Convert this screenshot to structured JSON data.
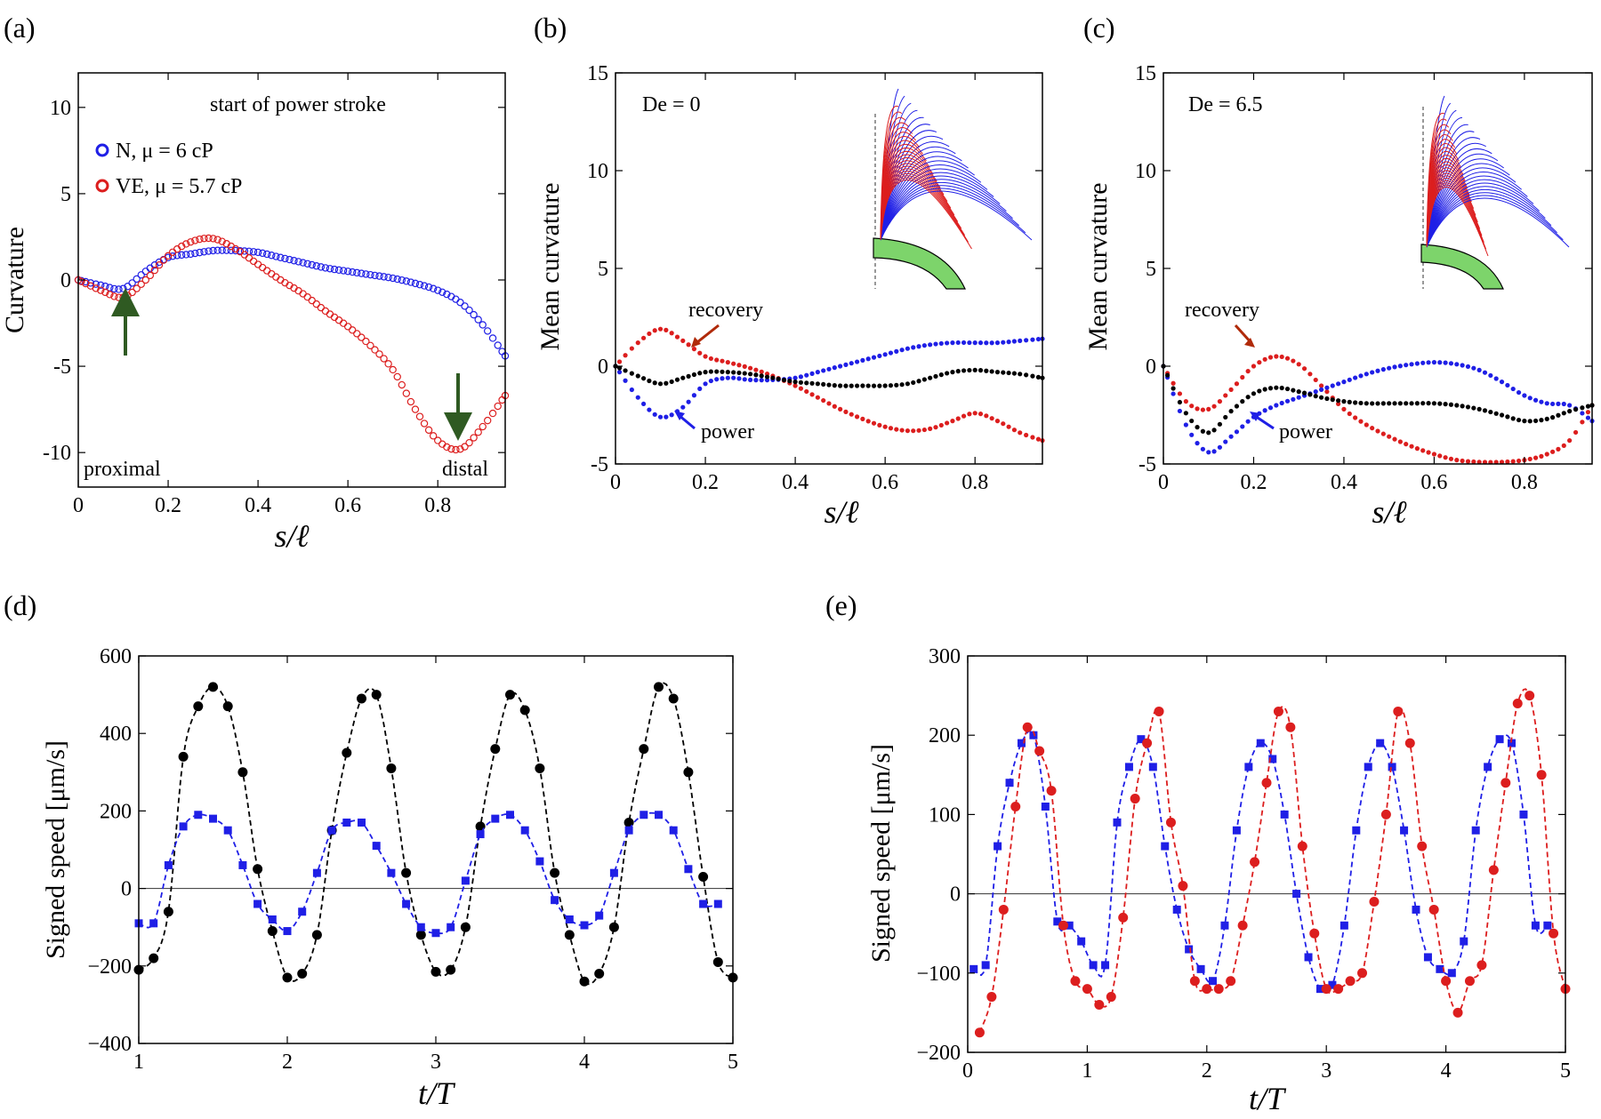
{
  "colors": {
    "blue": "#1f1fe6",
    "red": "#dc1e1e",
    "black": "#000000",
    "dark_red": "#b02a0a",
    "green_arrow": "#2f5a22",
    "green_fill": "#7dd46b"
  },
  "figure": {
    "panels": [
      {
        "letter": "(a)",
        "title": "start of power stroke",
        "ylabel": "Curvature",
        "xlabel": "s/ℓ",
        "xlim": [
          0,
          0.95
        ],
        "ylim": [
          -12,
          12
        ],
        "xticks": [
          "0",
          "0.2",
          "0.4",
          "0.6",
          "0.8"
        ],
        "yticks": [
          "-10",
          "-5",
          "0",
          "5",
          "10"
        ],
        "legend": [
          {
            "label": "N,  μ = 6 cP",
            "color": "#1f1fe6"
          },
          {
            "label": "VE,  μ = 5.7 cP",
            "color": "#dc1e1e"
          }
        ],
        "corner_labels": {
          "left": "proximal",
          "right": "distal"
        }
      },
      {
        "letter": "(b)",
        "condition": "De = 0",
        "ylabel": "Mean  curvature",
        "xlabel": "s/ℓ",
        "xlim": [
          0,
          0.95
        ],
        "ylim": [
          -5,
          15
        ],
        "xticks": [
          "0",
          "0.2",
          "0.4",
          "0.6",
          "0.8"
        ],
        "yticks": [
          "-5",
          "0",
          "5",
          "10",
          "15"
        ],
        "annotations": {
          "recovery": "recovery",
          "power": "power"
        }
      },
      {
        "letter": "(c)",
        "condition": "De = 6.5",
        "ylabel": "Mean  curvature",
        "xlabel": "s/ℓ",
        "xlim": [
          0,
          0.95
        ],
        "ylim": [
          -5,
          15
        ],
        "xticks": [
          "0",
          "0.2",
          "0.4",
          "0.6",
          "0.8"
        ],
        "yticks": [
          "-5",
          "0",
          "5",
          "10",
          "15"
        ],
        "annotations": {
          "recovery": "recovery",
          "power": "power"
        }
      },
      {
        "letter": "(d)",
        "ylabel": "Signed speed [μm/s]",
        "xlabel": "t/T",
        "xlim": [
          1,
          5
        ],
        "ylim": [
          -400,
          600
        ],
        "xticks": [
          "1",
          "2",
          "3",
          "4",
          "5"
        ],
        "yticks": [
          "−400",
          "−200",
          "0",
          "200",
          "400",
          "600"
        ]
      },
      {
        "letter": "(e)",
        "ylabel": "Signed speed [μm/s]",
        "xlabel": "t/T",
        "xlim": [
          0,
          5
        ],
        "ylim": [
          -200,
          300
        ],
        "xticks": [
          "0",
          "1",
          "2",
          "3",
          "4",
          "5"
        ],
        "yticks": [
          "−200",
          "−100",
          "0",
          "100",
          "200",
          "300"
        ]
      }
    ]
  },
  "chart_data": [
    {
      "panel": "a",
      "type": "scatter",
      "title": "start of power stroke",
      "xlabel": "s/ℓ",
      "ylabel": "Curvature",
      "xlim": [
        0,
        0.95
      ],
      "ylim": [
        -12,
        12
      ],
      "series": [
        {
          "name": "N, μ = 6 cP",
          "color": "#1f1fe6",
          "x": [
            0,
            0.05,
            0.1,
            0.15,
            0.2,
            0.25,
            0.3,
            0.35,
            0.4,
            0.45,
            0.5,
            0.55,
            0.6,
            0.65,
            0.7,
            0.75,
            0.8,
            0.85,
            0.9,
            0.95
          ],
          "y": [
            0,
            -0.3,
            -0.5,
            0.5,
            1.3,
            1.5,
            1.7,
            1.7,
            1.6,
            1.3,
            1.0,
            0.7,
            0.5,
            0.3,
            0.1,
            -0.2,
            -0.6,
            -1.3,
            -2.6,
            -4.4
          ]
        },
        {
          "name": "VE, μ = 5.7 cP",
          "color": "#dc1e1e",
          "x": [
            0,
            0.05,
            0.1,
            0.15,
            0.2,
            0.25,
            0.3,
            0.35,
            0.4,
            0.45,
            0.5,
            0.55,
            0.6,
            0.65,
            0.7,
            0.75,
            0.8,
            0.85,
            0.9,
            0.95
          ],
          "y": [
            0,
            -0.6,
            -1.0,
            0,
            1.4,
            2.2,
            2.4,
            1.8,
            0.9,
            0.0,
            -0.8,
            -1.8,
            -2.7,
            -3.8,
            -5.2,
            -7.5,
            -9.3,
            -9.8,
            -8.5,
            -6.7
          ]
        }
      ],
      "annotations": [
        "proximal",
        "distal"
      ]
    },
    {
      "panel": "b",
      "type": "scatter",
      "title": "De = 0",
      "xlabel": "s/ℓ",
      "ylabel": "Mean  curvature",
      "xlim": [
        0,
        0.95
      ],
      "ylim": [
        -5,
        15
      ],
      "series": [
        {
          "name": "recovery",
          "color": "#dc1e1e",
          "x": [
            0,
            0.05,
            0.1,
            0.15,
            0.2,
            0.25,
            0.3,
            0.35,
            0.4,
            0.45,
            0.5,
            0.55,
            0.6,
            0.65,
            0.7,
            0.75,
            0.8,
            0.85,
            0.9,
            0.95
          ],
          "y": [
            0,
            1.2,
            1.9,
            1.3,
            0.5,
            0.2,
            -0.1,
            -0.5,
            -1.0,
            -1.6,
            -2.2,
            -2.7,
            -3.1,
            -3.3,
            -3.2,
            -2.8,
            -2.4,
            -2.8,
            -3.4,
            -3.8
          ]
        },
        {
          "name": "power",
          "color": "#1f1fe6",
          "x": [
            0,
            0.05,
            0.1,
            0.15,
            0.2,
            0.25,
            0.3,
            0.35,
            0.4,
            0.45,
            0.5,
            0.55,
            0.6,
            0.65,
            0.7,
            0.75,
            0.8,
            0.85,
            0.9,
            0.95
          ],
          "y": [
            0,
            -1.6,
            -2.6,
            -2.1,
            -0.9,
            -0.6,
            -0.7,
            -0.7,
            -0.6,
            -0.3,
            0.0,
            0.3,
            0.6,
            0.9,
            1.1,
            1.2,
            1.2,
            1.2,
            1.3,
            1.4
          ]
        },
        {
          "name": "mean",
          "color": "#000000",
          "x": [
            0,
            0.05,
            0.1,
            0.15,
            0.2,
            0.25,
            0.3,
            0.35,
            0.4,
            0.45,
            0.5,
            0.55,
            0.6,
            0.65,
            0.7,
            0.75,
            0.8,
            0.85,
            0.9,
            0.95
          ],
          "y": [
            0,
            -0.5,
            -0.9,
            -0.6,
            -0.3,
            -0.3,
            -0.4,
            -0.6,
            -0.8,
            -0.9,
            -1.0,
            -1.0,
            -1.0,
            -0.9,
            -0.6,
            -0.3,
            -0.2,
            -0.3,
            -0.4,
            -0.6
          ]
        }
      ],
      "annotations": [
        "recovery",
        "power"
      ]
    },
    {
      "panel": "c",
      "type": "scatter",
      "title": "De = 6.5",
      "xlabel": "s/ℓ",
      "ylabel": "Mean  curvature",
      "xlim": [
        0,
        0.95
      ],
      "ylim": [
        -5,
        15
      ],
      "series": [
        {
          "name": "recovery",
          "color": "#dc1e1e",
          "x": [
            0,
            0.05,
            0.1,
            0.15,
            0.2,
            0.25,
            0.3,
            0.35,
            0.4,
            0.45,
            0.5,
            0.55,
            0.6,
            0.65,
            0.7,
            0.75,
            0.8,
            0.85,
            0.9,
            0.95
          ],
          "y": [
            0,
            -1.8,
            -2.2,
            -1.2,
            0.0,
            0.5,
            0.1,
            -1.0,
            -2.2,
            -3.0,
            -3.6,
            -4.1,
            -4.5,
            -4.8,
            -4.9,
            -4.9,
            -4.8,
            -4.5,
            -3.8,
            -2.0
          ]
        },
        {
          "name": "power",
          "color": "#1f1fe6",
          "x": [
            0,
            0.05,
            0.1,
            0.15,
            0.2,
            0.25,
            0.3,
            0.35,
            0.4,
            0.45,
            0.5,
            0.55,
            0.6,
            0.65,
            0.7,
            0.75,
            0.8,
            0.85,
            0.9,
            0.95
          ],
          "y": [
            0,
            -3.0,
            -4.4,
            -3.6,
            -2.6,
            -2.0,
            -1.6,
            -1.2,
            -0.8,
            -0.4,
            -0.1,
            0.1,
            0.2,
            0.1,
            -0.2,
            -0.8,
            -1.5,
            -1.9,
            -2.0,
            -2.8
          ]
        },
        {
          "name": "mean",
          "color": "#000000",
          "x": [
            0,
            0.05,
            0.1,
            0.15,
            0.2,
            0.25,
            0.3,
            0.35,
            0.4,
            0.45,
            0.5,
            0.55,
            0.6,
            0.65,
            0.7,
            0.75,
            0.8,
            0.85,
            0.9,
            0.95
          ],
          "y": [
            0,
            -2.4,
            -3.4,
            -2.3,
            -1.4,
            -1.1,
            -1.3,
            -1.6,
            -1.8,
            -1.9,
            -1.9,
            -1.9,
            -1.9,
            -2.0,
            -2.2,
            -2.5,
            -2.8,
            -2.7,
            -2.3,
            -2.0
          ]
        }
      ],
      "annotations": [
        "recovery",
        "power"
      ]
    },
    {
      "panel": "d",
      "type": "line",
      "xlabel": "t/T",
      "ylabel": "Signed speed [μm/s]",
      "xlim": [
        1,
        5
      ],
      "ylim": [
        -400,
        600
      ],
      "series": [
        {
          "name": "black",
          "color": "#000000",
          "marker": "circle",
          "x": [
            1.0,
            1.1,
            1.2,
            1.3,
            1.4,
            1.5,
            1.6,
            1.7,
            1.8,
            1.9,
            2.0,
            2.1,
            2.2,
            2.3,
            2.4,
            2.5,
            2.6,
            2.7,
            2.8,
            2.9,
            3.0,
            3.1,
            3.2,
            3.3,
            3.4,
            3.5,
            3.6,
            3.7,
            3.8,
            3.9,
            4.0,
            4.1,
            4.2,
            4.3,
            4.4,
            4.5,
            4.6,
            4.7,
            4.8,
            4.9,
            5.0
          ],
          "y": [
            -210,
            -180,
            -60,
            340,
            470,
            520,
            470,
            300,
            50,
            -110,
            -230,
            -220,
            -120,
            150,
            350,
            490,
            500,
            310,
            40,
            -120,
            -215,
            -210,
            -100,
            160,
            360,
            500,
            460,
            310,
            40,
            -120,
            -240,
            -220,
            -100,
            170,
            360,
            520,
            490,
            300,
            30,
            -190,
            -230
          ]
        },
        {
          "name": "blue",
          "color": "#1f1fe6",
          "marker": "square",
          "x": [
            1.0,
            1.1,
            1.2,
            1.3,
            1.4,
            1.5,
            1.6,
            1.7,
            1.8,
            1.9,
            2.0,
            2.1,
            2.2,
            2.3,
            2.4,
            2.5,
            2.6,
            2.7,
            2.8,
            2.9,
            3.0,
            3.1,
            3.2,
            3.3,
            3.4,
            3.5,
            3.6,
            3.7,
            3.8,
            3.9,
            4.0,
            4.1,
            4.2,
            4.3,
            4.4,
            4.5,
            4.6,
            4.7,
            4.8,
            4.9
          ],
          "y": [
            -90,
            -90,
            60,
            160,
            190,
            180,
            150,
            60,
            -40,
            -80,
            -110,
            -60,
            40,
            150,
            170,
            170,
            110,
            40,
            -40,
            -100,
            -115,
            -100,
            20,
            140,
            180,
            190,
            150,
            70,
            -30,
            -80,
            -95,
            -70,
            40,
            150,
            190,
            190,
            150,
            50,
            -40,
            -40
          ]
        }
      ]
    },
    {
      "panel": "e",
      "type": "line",
      "xlabel": "t/T",
      "ylabel": "Signed speed [μm/s]",
      "xlim": [
        0,
        5
      ],
      "ylim": [
        -200,
        300
      ],
      "series": [
        {
          "name": "blue",
          "color": "#1f1fe6",
          "marker": "square",
          "x": [
            0.05,
            0.15,
            0.25,
            0.35,
            0.45,
            0.55,
            0.65,
            0.75,
            0.85,
            0.95,
            1.05,
            1.15,
            1.25,
            1.35,
            1.45,
            1.55,
            1.65,
            1.75,
            1.85,
            1.95,
            2.05,
            2.15,
            2.25,
            2.35,
            2.45,
            2.55,
            2.65,
            2.75,
            2.85,
            2.95,
            3.05,
            3.15,
            3.25,
            3.35,
            3.45,
            3.55,
            3.65,
            3.75,
            3.85,
            3.95,
            4.05,
            4.15,
            4.25,
            4.35,
            4.45,
            4.55,
            4.65,
            4.75,
            4.85
          ],
          "y": [
            -95,
            -90,
            60,
            140,
            190,
            200,
            110,
            -35,
            -40,
            -60,
            -90,
            -90,
            90,
            160,
            195,
            160,
            60,
            -20,
            -70,
            -95,
            -110,
            -40,
            80,
            160,
            190,
            170,
            100,
            0,
            -80,
            -120,
            -115,
            -40,
            80,
            160,
            190,
            160,
            80,
            -20,
            -80,
            -95,
            -100,
            -60,
            80,
            160,
            195,
            190,
            100,
            -40,
            -40
          ]
        },
        {
          "name": "red",
          "color": "#dc1e1e",
          "marker": "circle",
          "x": [
            0.1,
            0.2,
            0.3,
            0.4,
            0.5,
            0.6,
            0.7,
            0.8,
            0.9,
            1.0,
            1.1,
            1.2,
            1.3,
            1.4,
            1.5,
            1.6,
            1.7,
            1.8,
            1.9,
            2.0,
            2.1,
            2.2,
            2.3,
            2.4,
            2.5,
            2.6,
            2.7,
            2.8,
            2.9,
            3.0,
            3.1,
            3.2,
            3.3,
            3.4,
            3.5,
            3.6,
            3.7,
            3.8,
            3.9,
            4.0,
            4.1,
            4.2,
            4.3,
            4.4,
            4.5,
            4.6,
            4.7,
            4.8,
            4.9,
            5.0
          ],
          "y": [
            -175,
            -130,
            -20,
            110,
            210,
            180,
            130,
            -40,
            -110,
            -120,
            -140,
            -130,
            -30,
            120,
            190,
            230,
            90,
            10,
            -110,
            -120,
            -120,
            -110,
            -40,
            40,
            140,
            230,
            210,
            60,
            -50,
            -120,
            -120,
            -110,
            -100,
            -10,
            100,
            230,
            190,
            60,
            -20,
            -110,
            -150,
            -110,
            -90,
            30,
            140,
            240,
            250,
            150,
            -50,
            -120
          ]
        }
      ]
    }
  ]
}
